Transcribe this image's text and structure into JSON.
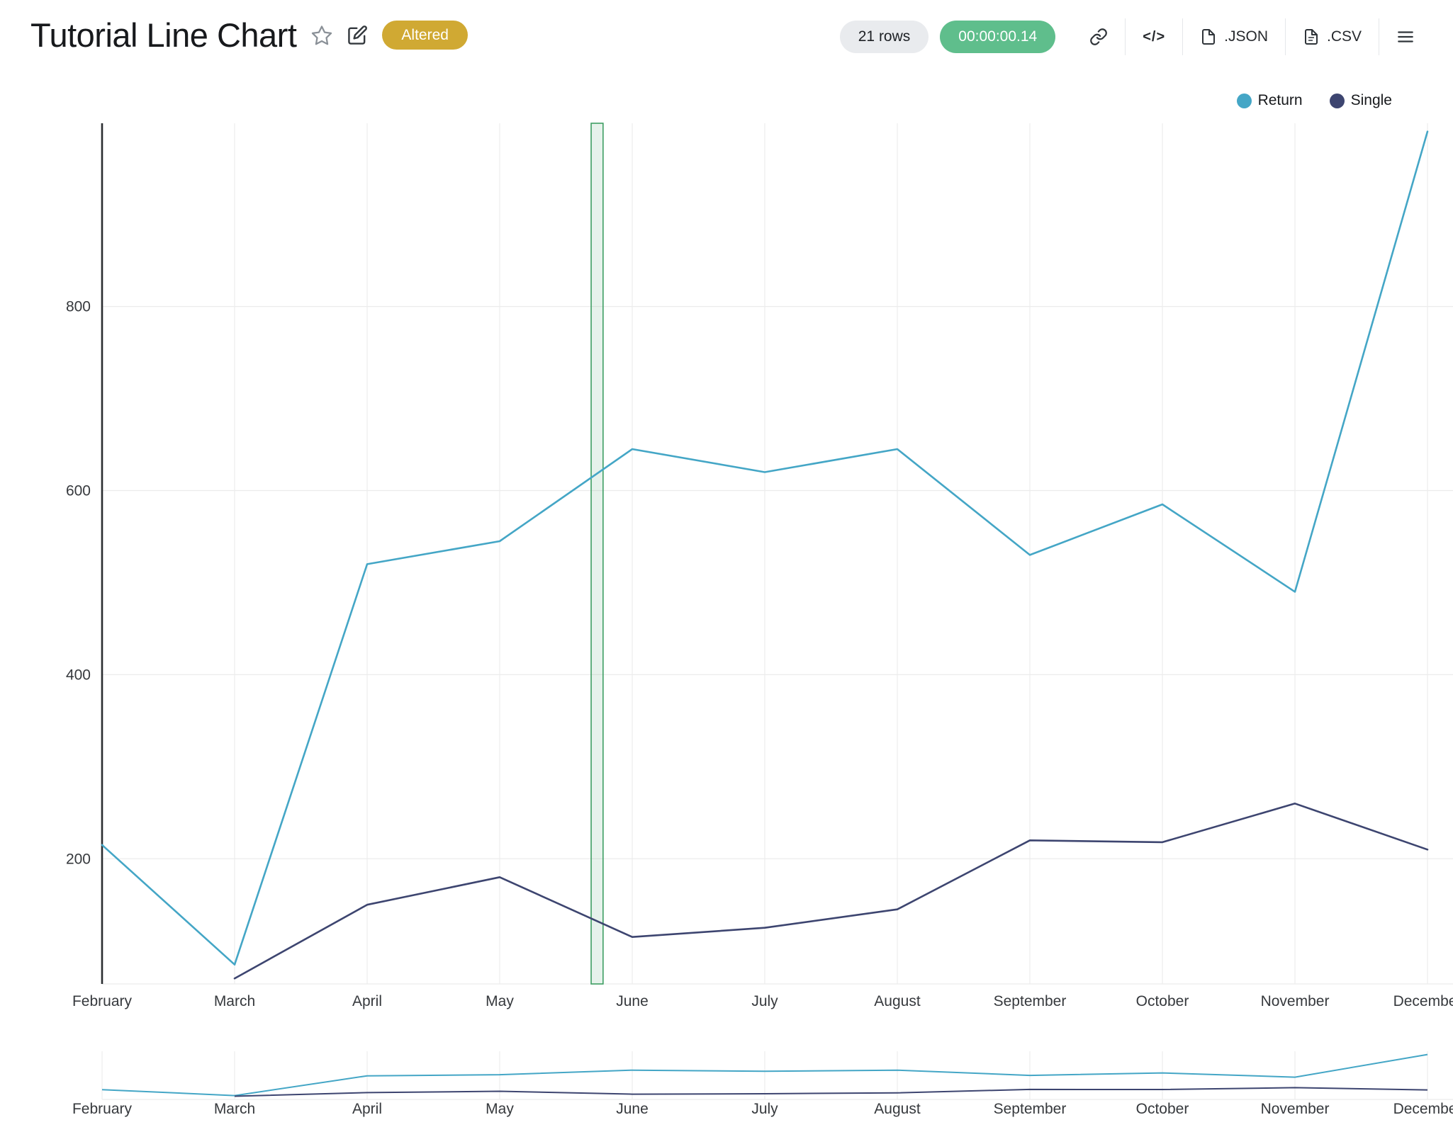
{
  "header": {
    "title": "Tutorial Line Chart",
    "altered_badge": "Altered",
    "rows_pill": "21 rows",
    "timer_pill": "00:00:00.14",
    "code_button_label": "</>",
    "export_json_label": ".JSON",
    "export_csv_label": ".CSV"
  },
  "legend": {
    "items": [
      {
        "label": "Return",
        "color": "#44a6c6"
      },
      {
        "label": "Single",
        "color": "#3d4570"
      }
    ]
  },
  "colors": {
    "accent_teal": "#44a6c6",
    "accent_navy": "#3d4570",
    "badge_gold": "#d0a933",
    "timer_green": "#5fbe8c",
    "pill_gray": "#e9ebee",
    "selection_green": "#3e9e63",
    "grid": "#ececec",
    "axis": "#2b2e31",
    "tick_text": "#36393d"
  },
  "chart_data": {
    "type": "line",
    "title": "Tutorial Line Chart",
    "x": [
      "February",
      "March",
      "April",
      "May",
      "June",
      "July",
      "August",
      "September",
      "October",
      "November",
      "December"
    ],
    "series": [
      {
        "name": "Return",
        "color": "#44a6c6",
        "values": [
          215,
          85,
          520,
          545,
          645,
          620,
          645,
          530,
          585,
          490,
          990
        ]
      },
      {
        "name": "Single",
        "color": "#3d4570",
        "values": [
          null,
          70,
          150,
          180,
          115,
          125,
          145,
          220,
          218,
          260,
          210
        ]
      }
    ],
    "yticks": [
      200,
      400,
      600,
      800
    ],
    "ylim": [
      64,
      999
    ],
    "grid": true,
    "legend_position": "top-right",
    "selection_band": {
      "from_month_index": 3.69,
      "to_month_index": 3.78,
      "color": "#3e9e63"
    },
    "navigator": {
      "enabled": true,
      "ylim": [
        0,
        1000
      ]
    }
  }
}
